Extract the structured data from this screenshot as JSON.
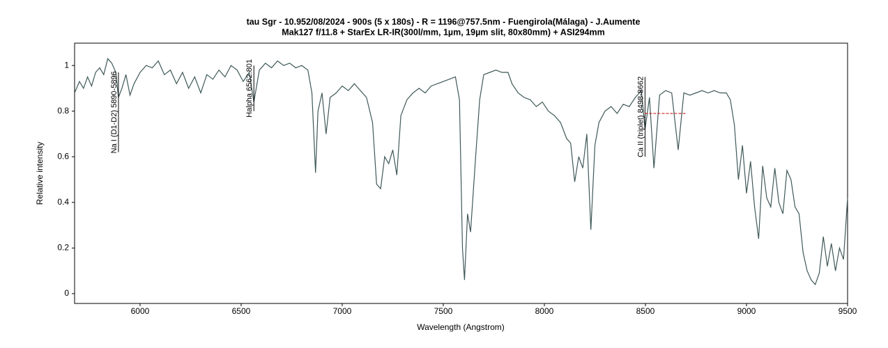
{
  "chart_data": {
    "type": "line",
    "title": "tau Sgr - 10.952/08/2024 - 900s (5 x 180s) - R = 1196@757.5nm - Fuengirola(Málaga) - J.Aumente",
    "subtitle": "Mak127 f/11.8 + StarEx LR-IR(300l/mm, 1µm, 19µm slit, 80x80mm) + ASI294mm",
    "xlabel": "Wavelength (Angstrom)",
    "ylabel": "Relative intensity",
    "xlim": [
      5676,
      9500
    ],
    "ylim": [
      -0.043,
      1.098
    ],
    "xticks": [
      6000,
      6500,
      7000,
      7500,
      8000,
      8500,
      9000,
      9500
    ],
    "yticks": [
      0,
      0.2,
      0.4,
      0.6,
      0.8,
      1
    ],
    "annotations": [
      {
        "text": "Na I (D1-D2) 5890-5896",
        "x": 5893,
        "y": [
          0.62,
          0.97
        ]
      },
      {
        "text": "Halpha 6562.801",
        "x": 6563,
        "y": [
          0.8,
          1.0
        ]
      },
      {
        "text": "Ca II (triplet) 8498-8662",
        "x": 8498,
        "y": [
          0.6,
          0.95
        ],
        "x2": 8700,
        "y2": 0.79
      }
    ],
    "series": [
      {
        "color": "#3f5858",
        "x": [
          5676,
          5700,
          5720,
          5740,
          5760,
          5780,
          5800,
          5820,
          5840,
          5860,
          5880,
          5893,
          5910,
          5930,
          5950,
          5970,
          6000,
          6030,
          6060,
          6090,
          6120,
          6150,
          6180,
          6210,
          6240,
          6270,
          6300,
          6330,
          6360,
          6390,
          6420,
          6450,
          6480,
          6510,
          6540,
          6563,
          6590,
          6620,
          6650,
          6680,
          6710,
          6740,
          6770,
          6800,
          6830,
          6850,
          6868,
          6880,
          6900,
          6920,
          6940,
          6970,
          7000,
          7030,
          7060,
          7090,
          7120,
          7150,
          7170,
          7190,
          7210,
          7230,
          7250,
          7270,
          7290,
          7320,
          7350,
          7380,
          7410,
          7440,
          7470,
          7500,
          7530,
          7560,
          7580,
          7595,
          7605,
          7620,
          7635,
          7660,
          7680,
          7700,
          7730,
          7760,
          7790,
          7820,
          7840,
          7870,
          7900,
          7930,
          7960,
          7990,
          8020,
          8050,
          8080,
          8110,
          8130,
          8150,
          8170,
          8190,
          8210,
          8230,
          8250,
          8270,
          8300,
          8330,
          8360,
          8390,
          8420,
          8450,
          8480,
          8498,
          8520,
          8542,
          8570,
          8600,
          8630,
          8662,
          8690,
          8720,
          8750,
          8780,
          8810,
          8840,
          8870,
          8900,
          8920,
          8940,
          8960,
          8980,
          9000,
          9020,
          9040,
          9060,
          9080,
          9100,
          9120,
          9140,
          9160,
          9180,
          9200,
          9220,
          9240,
          9260,
          9280,
          9300,
          9320,
          9340,
          9360,
          9380,
          9400,
          9420,
          9440,
          9460,
          9480,
          9500
        ],
        "values": [
          0.88,
          0.93,
          0.9,
          0.95,
          0.91,
          0.97,
          0.99,
          0.96,
          1.03,
          1.01,
          0.97,
          0.86,
          0.9,
          0.96,
          0.87,
          0.92,
          0.97,
          1.0,
          0.99,
          1.02,
          0.96,
          0.98,
          0.92,
          0.97,
          0.9,
          0.95,
          0.88,
          0.96,
          0.94,
          0.98,
          0.95,
          1.0,
          0.98,
          0.93,
          0.97,
          0.84,
          0.98,
          1.01,
          0.99,
          1.02,
          1.0,
          1.01,
          0.99,
          1.0,
          0.98,
          0.88,
          0.53,
          0.8,
          0.88,
          0.7,
          0.86,
          0.88,
          0.91,
          0.89,
          0.92,
          0.89,
          0.86,
          0.75,
          0.48,
          0.46,
          0.6,
          0.57,
          0.63,
          0.52,
          0.78,
          0.85,
          0.88,
          0.9,
          0.88,
          0.91,
          0.92,
          0.93,
          0.94,
          0.95,
          0.85,
          0.2,
          0.06,
          0.35,
          0.27,
          0.6,
          0.85,
          0.96,
          0.97,
          0.98,
          0.97,
          0.97,
          0.92,
          0.88,
          0.86,
          0.85,
          0.82,
          0.84,
          0.8,
          0.78,
          0.75,
          0.68,
          0.66,
          0.49,
          0.6,
          0.55,
          0.7,
          0.28,
          0.65,
          0.75,
          0.8,
          0.82,
          0.79,
          0.83,
          0.82,
          0.86,
          0.89,
          0.72,
          0.86,
          0.55,
          0.87,
          0.89,
          0.88,
          0.63,
          0.88,
          0.87,
          0.88,
          0.89,
          0.88,
          0.89,
          0.88,
          0.88,
          0.85,
          0.74,
          0.5,
          0.65,
          0.44,
          0.58,
          0.38,
          0.24,
          0.56,
          0.42,
          0.38,
          0.55,
          0.4,
          0.35,
          0.54,
          0.5,
          0.38,
          0.35,
          0.18,
          0.1,
          0.06,
          0.04,
          0.09,
          0.25,
          0.12,
          0.22,
          0.1,
          0.2,
          0.15,
          0.42
        ]
      }
    ]
  }
}
